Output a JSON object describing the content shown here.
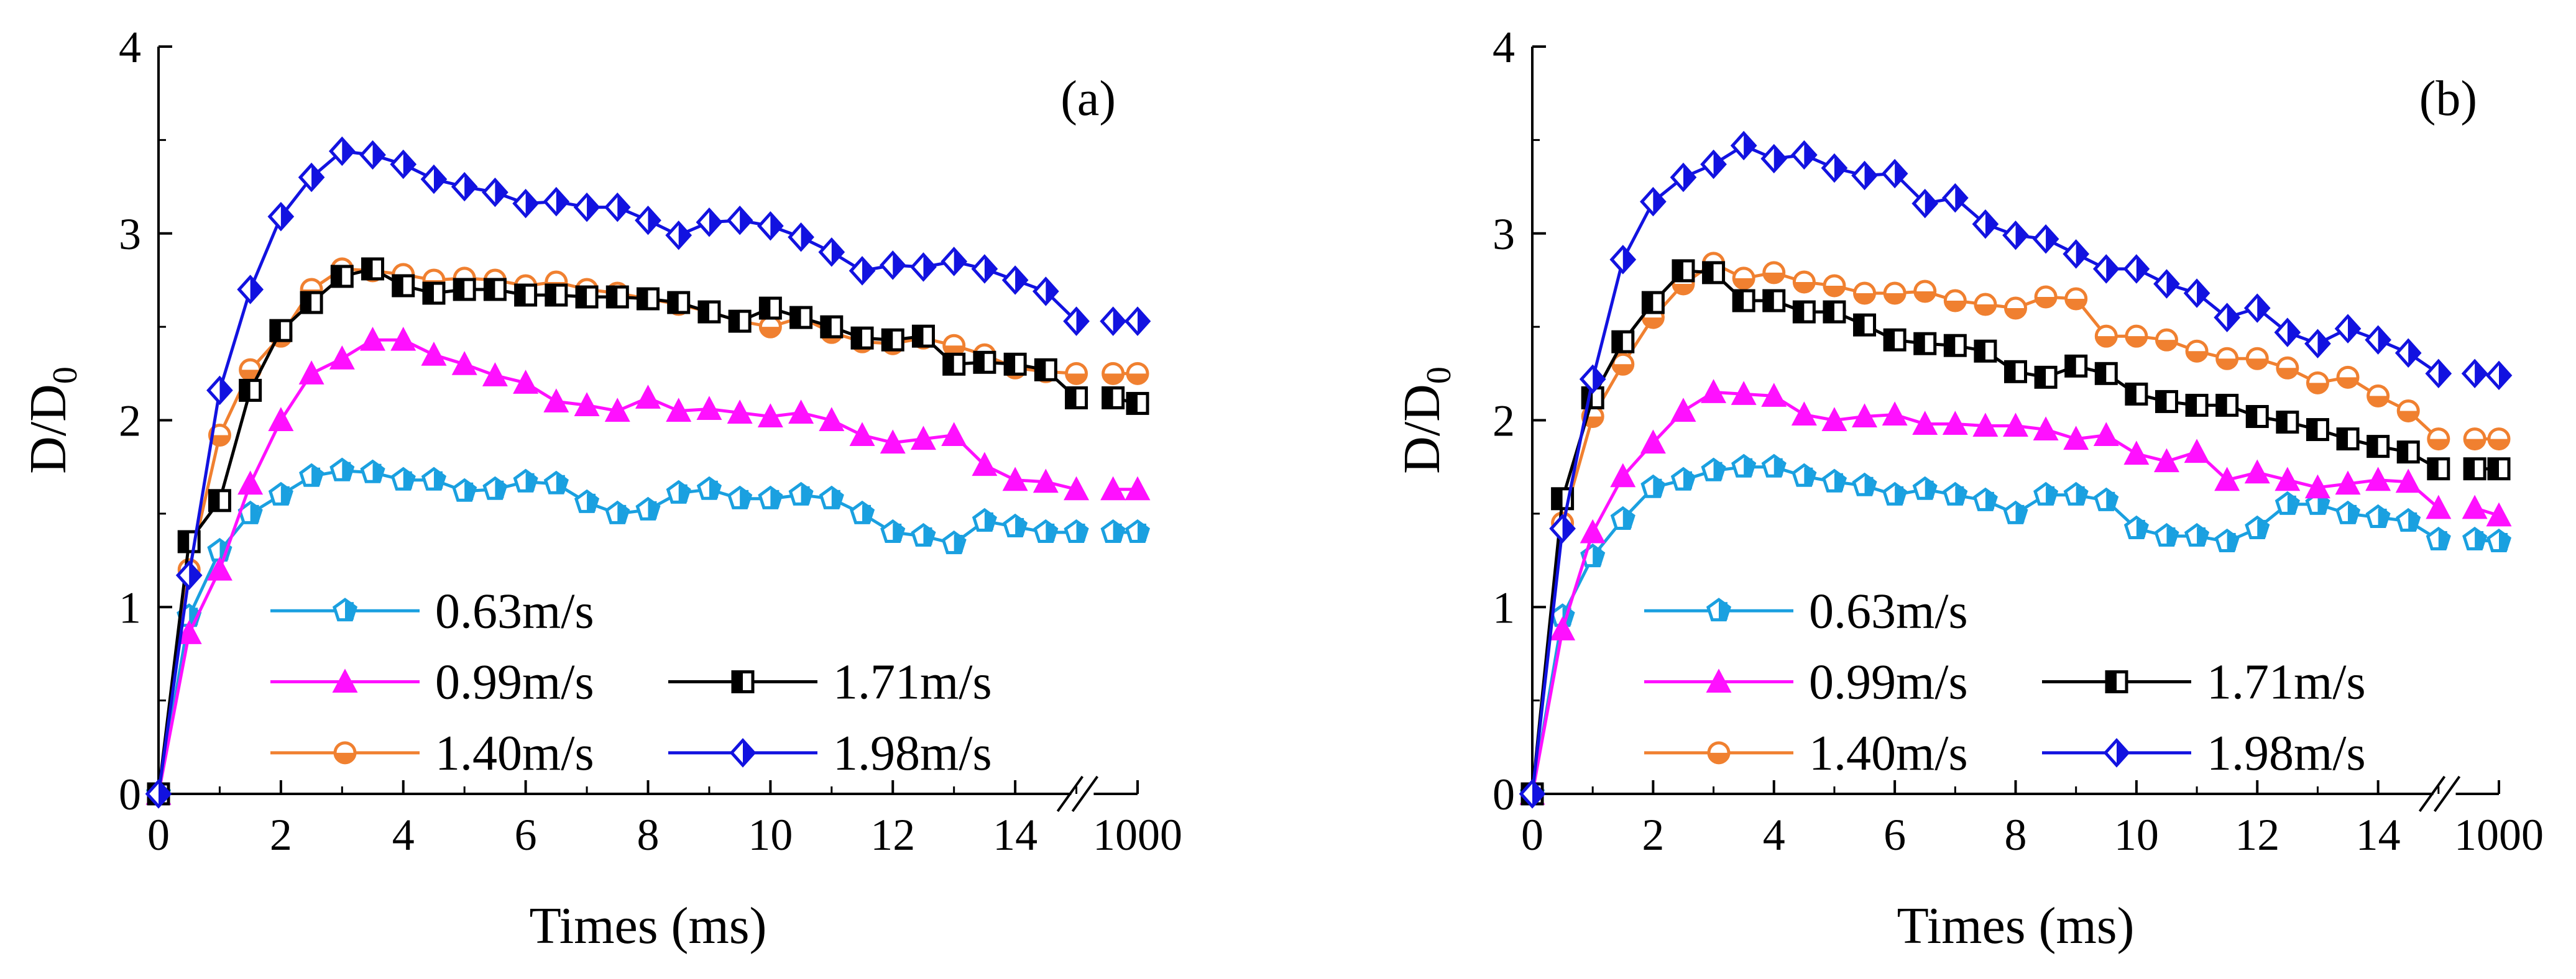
{
  "chart_data": [
    {
      "type": "line",
      "panel_label": "(a)",
      "xlabel": "Times (ms)",
      "ylabel_main": "D/D",
      "ylabel_sub": "0",
      "ylim": [
        0,
        4
      ],
      "xlim": [
        0,
        16
      ],
      "x_ticks": [
        0,
        2,
        4,
        6,
        8,
        10,
        12,
        14
      ],
      "x_tick_labels": [
        "0",
        "2",
        "4",
        "6",
        "8",
        "10",
        "12",
        "14"
      ],
      "x_break_label": "1000",
      "y_ticks": [
        0,
        1,
        2,
        3,
        4
      ],
      "y_tick_labels": [
        "0",
        "1",
        "2",
        "3",
        "4"
      ],
      "series": [
        {
          "name": "0.63m/s",
          "color": "#1aa0e0",
          "marker": "pentagon",
          "x": [
            0,
            0.5,
            1,
            1.5,
            2,
            2.5,
            3,
            3.5,
            4,
            4.5,
            5,
            5.5,
            6,
            6.5,
            7,
            7.5,
            8,
            8.5,
            9,
            9.5,
            10,
            10.5,
            11,
            11.5,
            12,
            12.5,
            13,
            13.5,
            14,
            14.5,
            15
          ],
          "y": [
            0,
            0.95,
            1.3,
            1.5,
            1.6,
            1.7,
            1.73,
            1.72,
            1.68,
            1.68,
            1.62,
            1.63,
            1.67,
            1.66,
            1.56,
            1.5,
            1.52,
            1.61,
            1.63,
            1.58,
            1.58,
            1.6,
            1.58,
            1.5,
            1.4,
            1.38,
            1.34,
            1.46,
            1.43,
            1.4,
            1.4
          ],
          "end_value": 1.4
        },
        {
          "name": "0.99m/s",
          "color": "#ff10ff",
          "marker": "triangle",
          "x": [
            0,
            0.5,
            1,
            1.5,
            2,
            2.5,
            3,
            3.5,
            4,
            4.5,
            5,
            5.5,
            6,
            6.5,
            7,
            7.5,
            8,
            8.5,
            9,
            9.5,
            10,
            10.5,
            11,
            11.5,
            12,
            12.5,
            13,
            13.5,
            14,
            14.5,
            15
          ],
          "y": [
            0,
            0.86,
            1.2,
            1.66,
            2.0,
            2.25,
            2.33,
            2.43,
            2.43,
            2.35,
            2.3,
            2.24,
            2.2,
            2.1,
            2.08,
            2.05,
            2.12,
            2.05,
            2.06,
            2.04,
            2.02,
            2.04,
            2.0,
            1.92,
            1.88,
            1.9,
            1.92,
            1.76,
            1.68,
            1.67,
            1.63
          ],
          "end_value": 1.63
        },
        {
          "name": "1.40m/s",
          "color": "#f08030",
          "marker": "circle",
          "x": [
            0,
            0.5,
            1,
            1.5,
            2,
            2.5,
            3,
            3.5,
            4,
            4.5,
            5,
            5.5,
            6,
            6.5,
            7,
            7.5,
            8,
            8.5,
            9,
            9.5,
            10,
            10.5,
            11,
            11.5,
            12,
            12.5,
            13,
            13.5,
            14,
            14.5,
            15
          ],
          "y": [
            0,
            1.2,
            1.92,
            2.27,
            2.45,
            2.7,
            2.81,
            2.8,
            2.78,
            2.75,
            2.76,
            2.75,
            2.72,
            2.74,
            2.7,
            2.68,
            2.65,
            2.62,
            2.58,
            2.53,
            2.5,
            2.55,
            2.47,
            2.42,
            2.41,
            2.44,
            2.4,
            2.35,
            2.28,
            2.26,
            2.25
          ],
          "end_value": 2.25
        },
        {
          "name": "1.71m/s",
          "color": "#000000",
          "marker": "square",
          "x": [
            0,
            0.5,
            1,
            1.5,
            2,
            2.5,
            3,
            3.5,
            4,
            4.5,
            5,
            5.5,
            6,
            6.5,
            7,
            7.5,
            8,
            8.5,
            9,
            9.5,
            10,
            10.5,
            11,
            11.5,
            12,
            12.5,
            13,
            13.5,
            14,
            14.5,
            15
          ],
          "y": [
            0,
            1.35,
            1.57,
            2.16,
            2.48,
            2.63,
            2.77,
            2.81,
            2.72,
            2.68,
            2.7,
            2.7,
            2.67,
            2.67,
            2.66,
            2.66,
            2.65,
            2.63,
            2.58,
            2.53,
            2.6,
            2.55,
            2.5,
            2.44,
            2.43,
            2.45,
            2.3,
            2.31,
            2.3,
            2.27,
            2.12
          ],
          "end_value": 2.09
        },
        {
          "name": "1.98m/s",
          "color": "#1212e0",
          "marker": "diamond",
          "x": [
            0,
            0.5,
            1,
            1.5,
            2,
            2.5,
            3,
            3.5,
            4,
            4.5,
            5,
            5.5,
            6,
            6.5,
            7,
            7.5,
            8,
            8.5,
            9,
            9.5,
            10,
            10.5,
            11,
            11.5,
            12,
            12.5,
            13,
            13.5,
            14,
            14.5,
            15
          ],
          "y": [
            0,
            1.17,
            2.16,
            2.7,
            3.09,
            3.3,
            3.44,
            3.42,
            3.37,
            3.29,
            3.25,
            3.22,
            3.16,
            3.17,
            3.14,
            3.14,
            3.07,
            2.99,
            3.06,
            3.07,
            3.04,
            2.98,
            2.9,
            2.8,
            2.83,
            2.82,
            2.85,
            2.81,
            2.75,
            2.69,
            2.53
          ],
          "end_value": 2.53
        }
      ],
      "legend_rows": [
        [
          "0.63m/s"
        ],
        [
          "0.99m/s",
          "1.71m/s"
        ],
        [
          "1.40m/s",
          "1.98m/s"
        ]
      ]
    },
    {
      "type": "line",
      "panel_label": "(b)",
      "xlabel": "Times (ms)",
      "ylabel_main": "D/D",
      "ylabel_sub": "0",
      "ylim": [
        0,
        4
      ],
      "xlim": [
        0,
        16
      ],
      "x_ticks": [
        0,
        2,
        4,
        6,
        8,
        10,
        12,
        14
      ],
      "x_tick_labels": [
        "0",
        "2",
        "4",
        "6",
        "8",
        "10",
        "12",
        "14"
      ],
      "x_break_label": "1000",
      "y_ticks": [
        0,
        1,
        2,
        3,
        4
      ],
      "y_tick_labels": [
        "0",
        "1",
        "2",
        "3",
        "4"
      ],
      "series": [
        {
          "name": "0.63m/s",
          "color": "#1aa0e0",
          "marker": "pentagon",
          "x": [
            0,
            0.5,
            1,
            1.5,
            2,
            2.5,
            3,
            3.5,
            4,
            4.5,
            5,
            5.5,
            6,
            6.5,
            7,
            7.5,
            8,
            8.5,
            9,
            9.5,
            10,
            10.5,
            11,
            11.5,
            12,
            12.5,
            13,
            13.5,
            14,
            14.5,
            15
          ],
          "y": [
            0,
            0.95,
            1.27,
            1.47,
            1.64,
            1.68,
            1.73,
            1.75,
            1.75,
            1.7,
            1.67,
            1.65,
            1.6,
            1.63,
            1.6,
            1.57,
            1.5,
            1.6,
            1.6,
            1.57,
            1.42,
            1.38,
            1.38,
            1.35,
            1.42,
            1.55,
            1.55,
            1.5,
            1.48,
            1.46,
            1.36
          ],
          "end_value": 1.35
        },
        {
          "name": "0.99m/s",
          "color": "#ff10ff",
          "marker": "triangle",
          "x": [
            0,
            0.5,
            1,
            1.5,
            2,
            2.5,
            3,
            3.5,
            4,
            4.5,
            5,
            5.5,
            6,
            6.5,
            7,
            7.5,
            8,
            8.5,
            9,
            9.5,
            10,
            10.5,
            11,
            11.5,
            12,
            12.5,
            13,
            13.5,
            14,
            14.5,
            15
          ],
          "y": [
            0,
            0.88,
            1.4,
            1.7,
            1.88,
            2.05,
            2.15,
            2.14,
            2.13,
            2.03,
            2.0,
            2.02,
            2.03,
            1.98,
            1.98,
            1.97,
            1.97,
            1.95,
            1.9,
            1.92,
            1.82,
            1.78,
            1.83,
            1.68,
            1.72,
            1.68,
            1.64,
            1.66,
            1.68,
            1.67,
            1.53
          ],
          "end_value": 1.49
        },
        {
          "name": "1.40m/s",
          "color": "#f08030",
          "marker": "circle",
          "x": [
            0,
            0.5,
            1,
            1.5,
            2,
            2.5,
            3,
            3.5,
            4,
            4.5,
            5,
            5.5,
            6,
            6.5,
            7,
            7.5,
            8,
            8.5,
            9,
            9.5,
            10,
            10.5,
            11,
            11.5,
            12,
            12.5,
            13,
            13.5,
            14,
            14.5,
            15
          ],
          "y": [
            0,
            1.45,
            2.02,
            2.3,
            2.55,
            2.73,
            2.84,
            2.76,
            2.79,
            2.74,
            2.72,
            2.68,
            2.68,
            2.69,
            2.64,
            2.62,
            2.6,
            2.66,
            2.65,
            2.45,
            2.45,
            2.43,
            2.37,
            2.33,
            2.33,
            2.28,
            2.2,
            2.23,
            2.13,
            2.05,
            1.9
          ],
          "end_value": 1.9
        },
        {
          "name": "1.71m/s",
          "color": "#000000",
          "marker": "square",
          "x": [
            0,
            0.5,
            1,
            1.5,
            2,
            2.5,
            3,
            3.5,
            4,
            4.5,
            5,
            5.5,
            6,
            6.5,
            7,
            7.5,
            8,
            8.5,
            9,
            9.5,
            10,
            10.5,
            11,
            11.5,
            12,
            12.5,
            13,
            13.5,
            14,
            14.5,
            15
          ],
          "y": [
            0,
            1.58,
            2.12,
            2.42,
            2.63,
            2.8,
            2.79,
            2.64,
            2.64,
            2.58,
            2.58,
            2.51,
            2.43,
            2.41,
            2.4,
            2.37,
            2.26,
            2.23,
            2.29,
            2.25,
            2.14,
            2.1,
            2.08,
            2.08,
            2.02,
            1.99,
            1.95,
            1.9,
            1.86,
            1.83,
            1.74
          ],
          "end_value": 1.74
        },
        {
          "name": "1.98m/s",
          "color": "#1212e0",
          "marker": "diamond",
          "x": [
            0,
            0.5,
            1,
            1.5,
            2,
            2.5,
            3,
            3.5,
            4,
            4.5,
            5,
            5.5,
            6,
            6.5,
            7,
            7.5,
            8,
            8.5,
            9,
            9.5,
            10,
            10.5,
            11,
            11.5,
            12,
            12.5,
            13,
            13.5,
            14,
            14.5,
            15
          ],
          "y": [
            0,
            1.42,
            2.22,
            2.86,
            3.17,
            3.3,
            3.37,
            3.47,
            3.4,
            3.42,
            3.35,
            3.31,
            3.32,
            3.16,
            3.19,
            3.05,
            2.99,
            2.97,
            2.89,
            2.81,
            2.81,
            2.73,
            2.68,
            2.55,
            2.6,
            2.47,
            2.41,
            2.49,
            2.43,
            2.36,
            2.25
          ],
          "end_value": 2.24
        }
      ],
      "legend_rows": [
        [
          "0.63m/s"
        ],
        [
          "0.99m/s",
          "1.71m/s"
        ],
        [
          "1.40m/s",
          "1.98m/s"
        ]
      ]
    }
  ]
}
